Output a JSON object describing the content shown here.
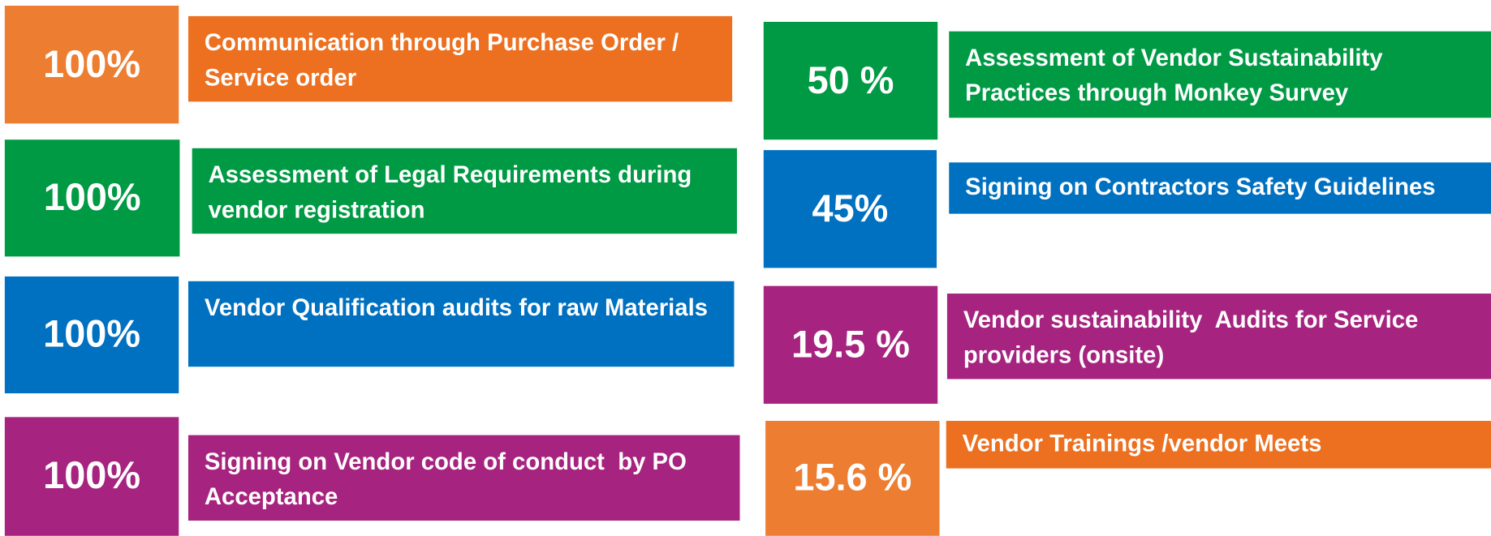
{
  "items": [
    {
      "value": "100%",
      "label": "Communication through Purchase Order / Service order"
    },
    {
      "value": "100%",
      "label": "Assessment of Legal Requirements during vendor registration"
    },
    {
      "value": "100%",
      "label": "Vendor Qualification audits for raw Materials"
    },
    {
      "value": "100%",
      "label": "Signing on Vendor code of conduct  by PO Acceptance"
    },
    {
      "value": "50 %",
      "label": "Assessment of Vendor Sustainability Practices through Monkey Survey"
    },
    {
      "value": "45%",
      "label": "Signing on Contractors Safety Guidelines"
    },
    {
      "value": "19.5 %",
      "label": "Vendor sustainability  Audits for Service providers (onsite)"
    },
    {
      "value": "15.6 %",
      "label": "Vendor Trainings /vendor Meets"
    }
  ]
}
